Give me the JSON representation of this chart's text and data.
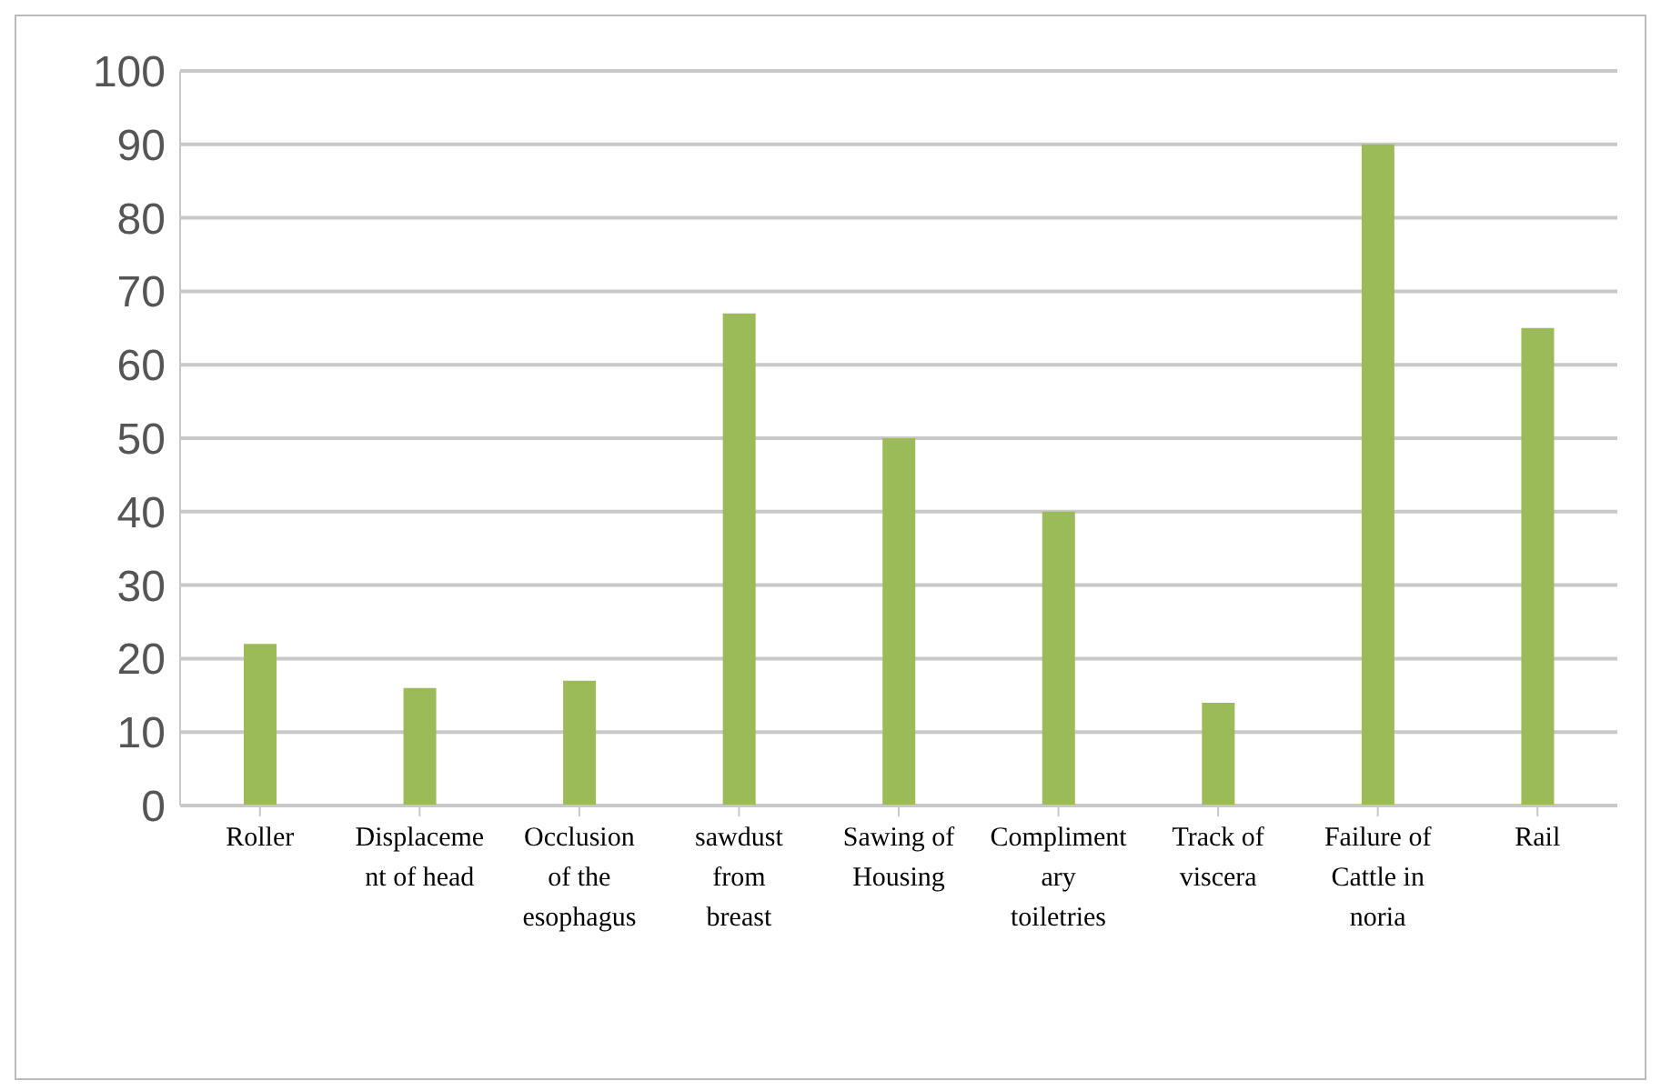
{
  "chart_data": {
    "type": "bar",
    "categories": [
      "Roller",
      "Displacement of head",
      "Occlusion of the esophagus",
      "sawdust from breast",
      "Sawing of Housing",
      "Complimentary toiletries",
      "Track of viscera",
      "Failure of Cattle in noria",
      "Rail"
    ],
    "values": [
      22,
      16,
      17,
      67,
      50,
      40,
      14,
      90,
      65
    ],
    "color": "#9bbb59",
    "ylim": [
      0,
      100
    ],
    "yticks": [
      0,
      10,
      20,
      30,
      40,
      50,
      60,
      70,
      80,
      90,
      100
    ],
    "grid": "y",
    "legend": false
  }
}
